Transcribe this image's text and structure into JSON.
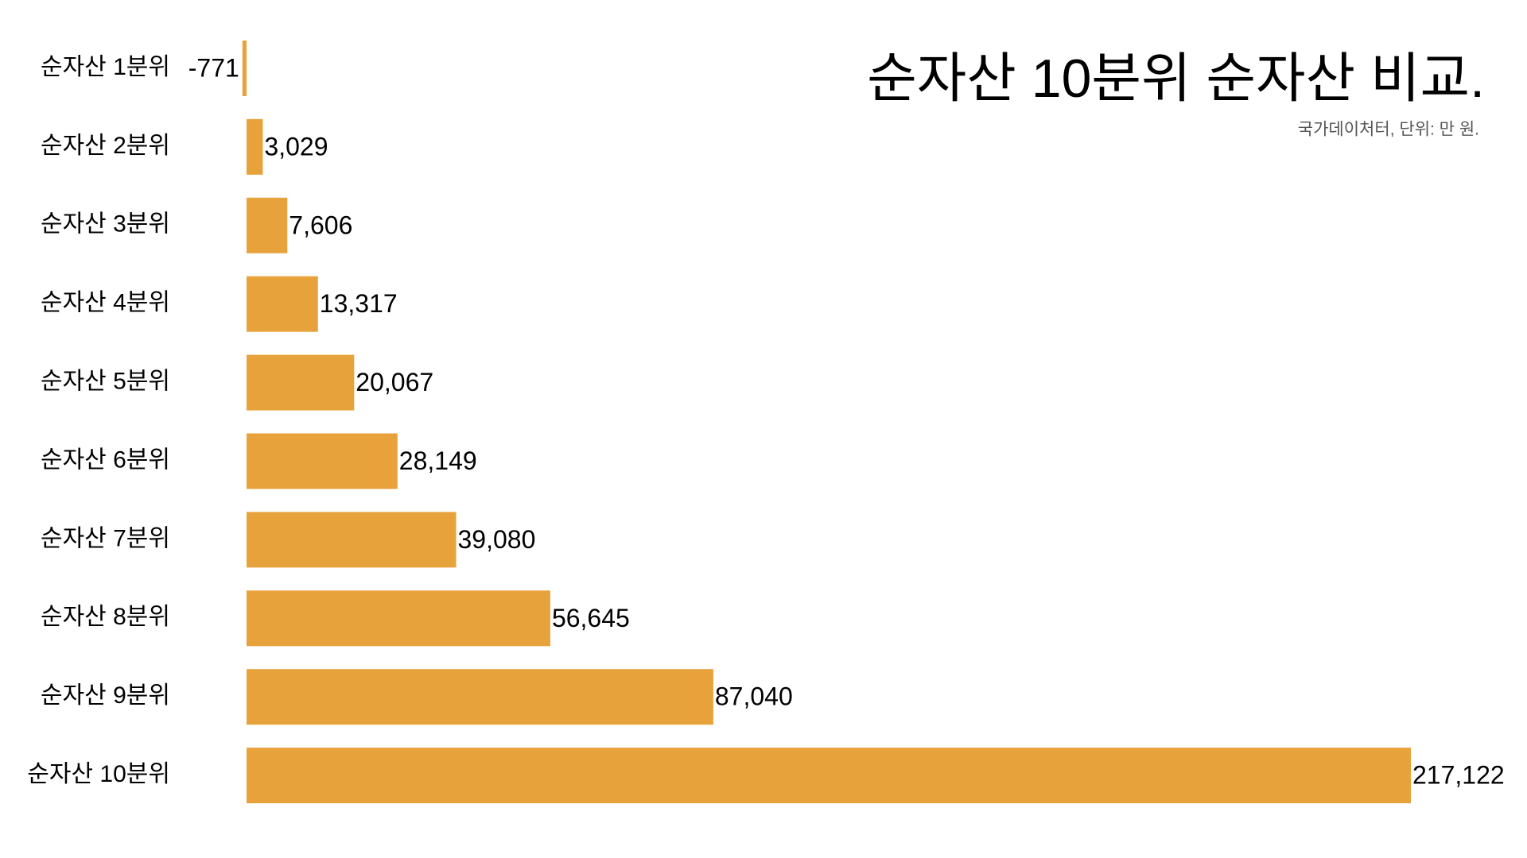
{
  "chart_data": {
    "type": "barh",
    "title": "순자산 10분위 순자산 비교.",
    "subtitle": "국가데이처터, 단위: 만 원.",
    "categories": [
      "순자산 1분위",
      "순자산 2분위",
      "순자산 3분위",
      "순자산 4분위",
      "순자산 5분위",
      "순자산 6분위",
      "순자산 7분위",
      "순자산 8분위",
      "순자산 9분위",
      "순자산 10분위"
    ],
    "values": [
      -771,
      3029,
      7606,
      13317,
      20067,
      28149,
      39080,
      56645,
      87040,
      217122
    ],
    "value_labels": [
      "-771",
      "3,029",
      "7,606",
      "13,317",
      "20,067",
      "28,149",
      "39,080",
      "56,645",
      "87,040",
      "217,122"
    ],
    "color": "#e8a23c"
  }
}
